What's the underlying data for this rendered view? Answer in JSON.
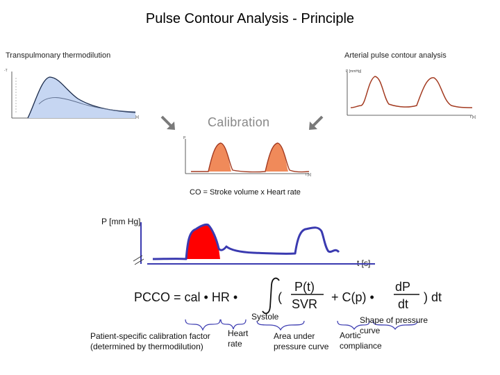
{
  "title": "Pulse Contour Analysis - Principle",
  "left_panel": {
    "title": "Transpulmonary thermodilution",
    "y_label": "-T",
    "x_label": "t [s]"
  },
  "right_panel": {
    "title": "Arterial pulse contour analysis",
    "y_label": "P [mmHg]",
    "x_label": "t [s]"
  },
  "center": {
    "calibration": "Calibration",
    "y_label": "P",
    "x_label": "t [s]",
    "co_formula": "CO = Stroke volume x Heart rate"
  },
  "main_chart": {
    "y_label": "P [mm Hg]",
    "x_label": "t [s]"
  },
  "formula": {
    "lhs": "PCCO = cal • HR •",
    "open": "(",
    "num1": "P(t)",
    "den1": "SVR",
    "plus": "+ C(p) •",
    "num2": "dP",
    "den2": "dt",
    "close": ") dt",
    "integral_sub": "Systole"
  },
  "annotations": {
    "calibration_factor": "Patient-specific calibration factor (determined by thermodilution)",
    "heart_rate": "Heart rate",
    "area": "Area under pressure curve",
    "compliance": "Aortic compliance",
    "shape": "Shape of pressure curve"
  },
  "colors": {
    "thermo_fill": "#c6d6f2",
    "pressure_line": "#a33a20",
    "calib_fill": "#f08a5a",
    "main_fill": "#ff0000",
    "main_line": "#3a3ab0",
    "arrow": "#7a7a7a"
  }
}
